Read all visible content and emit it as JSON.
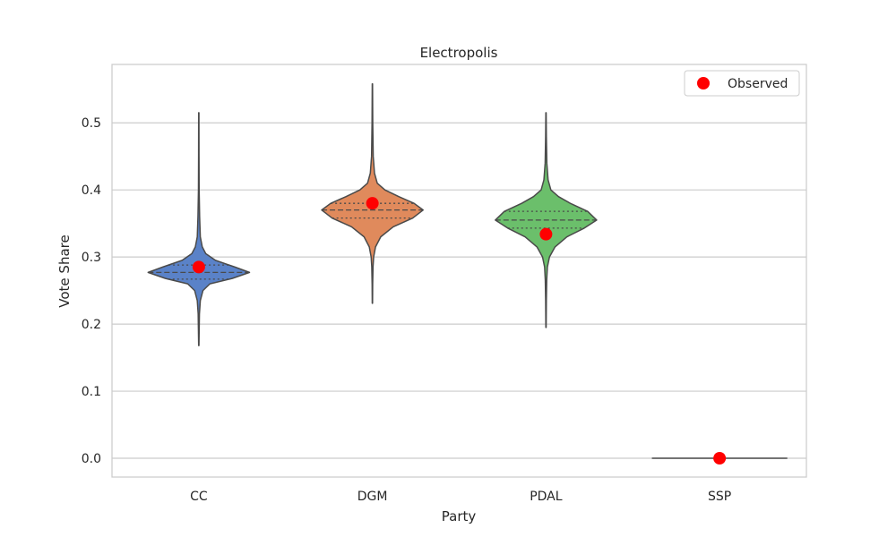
{
  "chart_data": {
    "type": "violin",
    "title": "Electropolis",
    "xlabel": "Party",
    "ylabel": "Vote Share",
    "ylim": [
      -0.028,
      0.587
    ],
    "yticks": [
      0.0,
      0.1,
      0.2,
      0.3,
      0.4,
      0.5
    ],
    "ytick_labels": [
      "0.0",
      "0.1",
      "0.2",
      "0.3",
      "0.4",
      "0.5"
    ],
    "grid": true,
    "legend": {
      "position": "top-right",
      "entries": [
        "Observed"
      ]
    },
    "categories": [
      "CC",
      "DGM",
      "PDAL",
      "SSP"
    ],
    "violins": [
      {
        "name": "CC",
        "color": "#5a82c8",
        "min": 0.168,
        "max": 0.515,
        "q1": 0.267,
        "median": 0.277,
        "q3": 0.288,
        "observed": 0.285,
        "profile": [
          [
            0.168,
            0.002
          ],
          [
            0.195,
            0.006
          ],
          [
            0.215,
            0.009
          ],
          [
            0.235,
            0.022
          ],
          [
            0.25,
            0.06
          ],
          [
            0.26,
            0.16
          ],
          [
            0.268,
            0.48
          ],
          [
            0.277,
            0.73
          ],
          [
            0.285,
            0.52
          ],
          [
            0.295,
            0.24
          ],
          [
            0.305,
            0.1
          ],
          [
            0.315,
            0.05
          ],
          [
            0.33,
            0.022
          ],
          [
            0.36,
            0.012
          ],
          [
            0.4,
            0.005
          ],
          [
            0.45,
            0.003
          ],
          [
            0.515,
            0.002
          ]
        ]
      },
      {
        "name": "DGM",
        "color": "#e08a5c",
        "min": 0.231,
        "max": 0.558,
        "q1": 0.358,
        "median": 0.37,
        "q3": 0.38,
        "observed": 0.38,
        "profile": [
          [
            0.231,
            0.002
          ],
          [
            0.26,
            0.004
          ],
          [
            0.285,
            0.009
          ],
          [
            0.3,
            0.018
          ],
          [
            0.315,
            0.045
          ],
          [
            0.33,
            0.12
          ],
          [
            0.345,
            0.3
          ],
          [
            0.358,
            0.58
          ],
          [
            0.37,
            0.73
          ],
          [
            0.38,
            0.6
          ],
          [
            0.39,
            0.38
          ],
          [
            0.4,
            0.18
          ],
          [
            0.41,
            0.07
          ],
          [
            0.425,
            0.03
          ],
          [
            0.45,
            0.012
          ],
          [
            0.5,
            0.005
          ],
          [
            0.558,
            0.002
          ]
        ]
      },
      {
        "name": "PDAL",
        "color": "#6bbf6b",
        "min": 0.195,
        "max": 0.515,
        "q1": 0.343,
        "median": 0.355,
        "q3": 0.368,
        "observed": 0.334,
        "profile": [
          [
            0.195,
            0.002
          ],
          [
            0.235,
            0.005
          ],
          [
            0.265,
            0.01
          ],
          [
            0.285,
            0.02
          ],
          [
            0.3,
            0.05
          ],
          [
            0.315,
            0.13
          ],
          [
            0.33,
            0.3
          ],
          [
            0.343,
            0.55
          ],
          [
            0.355,
            0.73
          ],
          [
            0.368,
            0.6
          ],
          [
            0.38,
            0.35
          ],
          [
            0.39,
            0.18
          ],
          [
            0.4,
            0.07
          ],
          [
            0.415,
            0.03
          ],
          [
            0.44,
            0.012
          ],
          [
            0.48,
            0.005
          ],
          [
            0.515,
            0.002
          ]
        ]
      },
      {
        "name": "SSP",
        "color": "#c44e52",
        "min": 0.0,
        "max": 0.0,
        "q1": 0.0,
        "median": 0.0,
        "q3": 0.0,
        "observed": 0.0,
        "profile": []
      }
    ]
  }
}
